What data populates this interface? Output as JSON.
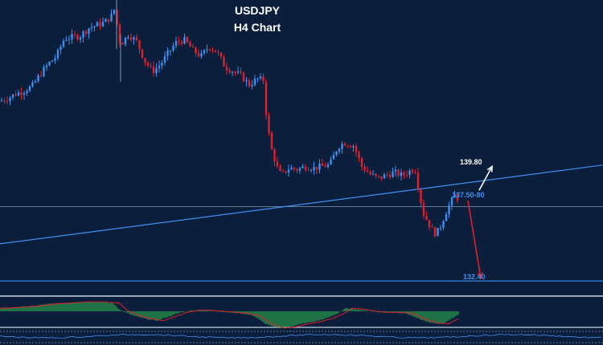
{
  "header": {
    "title": "USDJPY",
    "subtitle": "H4 Chart"
  },
  "colors": {
    "background": "#0b1e3c",
    "bull": "#3f8ff0",
    "bear": "#e0202a",
    "wick": "#7d96b8",
    "trendline": "#3f8ff0",
    "level_line": "#3f8ff0",
    "hline": "#9fb3c8",
    "up_arrow": "#ffffff",
    "down_arrow": "#e0202a",
    "hist": "#2eb84f",
    "signal": "#e0202a"
  },
  "annotations": {
    "target_up": "139.80",
    "resistance": "137.50-80",
    "target_down": "132.40",
    "up_arrow_icon": "arrow-up-icon",
    "down_arrow_icon": "arrow-down-icon"
  },
  "chart_data": {
    "type": "candlestick",
    "title": "USDJPY",
    "subtitle": "H4 Chart",
    "price_axis_visible": false,
    "time_axis_visible": false,
    "grid": false,
    "ylim": [
      131.6,
      151.3
    ],
    "path": [
      [
        0,
        144.5
      ],
      [
        10,
        144.7
      ],
      [
        20,
        145.0
      ],
      [
        30,
        145.2
      ],
      [
        40,
        145.5
      ],
      [
        50,
        146.3
      ],
      [
        60,
        147.0
      ],
      [
        70,
        147.5
      ],
      [
        80,
        148.7
      ],
      [
        90,
        148.8
      ],
      [
        100,
        148.9
      ],
      [
        110,
        149.4
      ],
      [
        120,
        149.6
      ],
      [
        130,
        149.8
      ],
      [
        140,
        150.3
      ],
      [
        144,
        151.0
      ],
      [
        146,
        149.2
      ],
      [
        150,
        148.3
      ],
      [
        160,
        149.0
      ],
      [
        170,
        148.5
      ],
      [
        180,
        147.2
      ],
      [
        190,
        146.5
      ],
      [
        200,
        147.0
      ],
      [
        210,
        147.8
      ],
      [
        220,
        148.5
      ],
      [
        230,
        148.6
      ],
      [
        240,
        147.9
      ],
      [
        250,
        147.5
      ],
      [
        260,
        148.2
      ],
      [
        270,
        147.8
      ],
      [
        280,
        146.8
      ],
      [
        290,
        146.5
      ],
      [
        300,
        146.2
      ],
      [
        310,
        145.6
      ],
      [
        320,
        146.0
      ],
      [
        328,
        145.9
      ],
      [
        332,
        143.0
      ],
      [
        338,
        141.2
      ],
      [
        345,
        140.0
      ],
      [
        350,
        139.5
      ],
      [
        355,
        139.8
      ],
      [
        360,
        140.0
      ],
      [
        370,
        139.9
      ],
      [
        380,
        140.1
      ],
      [
        390,
        140.0
      ],
      [
        400,
        140.1
      ],
      [
        410,
        140.2
      ],
      [
        420,
        141.4
      ],
      [
        428,
        141.7
      ],
      [
        440,
        141.5
      ],
      [
        450,
        140.1
      ],
      [
        460,
        139.6
      ],
      [
        470,
        139.3
      ],
      [
        480,
        139.5
      ],
      [
        490,
        139.7
      ],
      [
        500,
        139.5
      ],
      [
        510,
        139.8
      ],
      [
        516,
        140.0
      ],
      [
        520,
        138.8
      ],
      [
        526,
        137.0
      ],
      [
        532,
        136.4
      ],
      [
        540,
        135.6
      ],
      [
        546,
        135.8
      ],
      [
        550,
        136.4
      ],
      [
        556,
        137.2
      ],
      [
        562,
        137.8
      ],
      [
        566,
        138.2
      ],
      [
        570,
        137.9
      ]
    ],
    "levels": [
      {
        "label": "139.80",
        "price": 139.8
      },
      {
        "label": "137.50-80",
        "price": 137.65
      },
      {
        "label": "132.40",
        "price": 132.4
      }
    ],
    "horizontal_lines": [
      137.4,
      132.4
    ],
    "trendline": [
      [
        0,
        134.9
      ],
      [
        750,
        140.2
      ]
    ],
    "projections": [
      {
        "direction": "up",
        "from": [
          596,
          138.5
        ],
        "to": [
          612,
          140.1
        ]
      },
      {
        "direction": "down",
        "from": [
          582,
          137.8
        ],
        "to": [
          598,
          132.6
        ]
      }
    ],
    "indicator": {
      "type": "oscillator histogram",
      "histogram": [
        [
          0,
          0.3
        ],
        [
          20,
          0.4
        ],
        [
          40,
          0.5
        ],
        [
          60,
          0.7
        ],
        [
          80,
          0.8
        ],
        [
          100,
          0.9
        ],
        [
          120,
          0.9
        ],
        [
          140,
          0.8
        ],
        [
          150,
          0.1
        ],
        [
          165,
          -0.4
        ],
        [
          180,
          -0.7
        ],
        [
          195,
          -0.9
        ],
        [
          210,
          -0.5
        ],
        [
          225,
          -0.1
        ],
        [
          240,
          0.1
        ],
        [
          255,
          0.1
        ],
        [
          270,
          0.0
        ],
        [
          285,
          -0.1
        ],
        [
          300,
          -0.2
        ],
        [
          315,
          -0.4
        ],
        [
          330,
          -1.2
        ],
        [
          345,
          -1.6
        ],
        [
          360,
          -1.5
        ],
        [
          375,
          -1.2
        ],
        [
          390,
          -1.0
        ],
        [
          405,
          -0.7
        ],
        [
          420,
          -0.2
        ],
        [
          430,
          0.3
        ],
        [
          445,
          0.2
        ],
        [
          460,
          0.0
        ],
        [
          475,
          -0.1
        ],
        [
          490,
          -0.1
        ],
        [
          505,
          -0.2
        ],
        [
          520,
          -0.7
        ],
        [
          535,
          -1.1
        ],
        [
          550,
          -1.2
        ],
        [
          560,
          -0.8
        ],
        [
          570,
          -0.3
        ]
      ]
    }
  }
}
